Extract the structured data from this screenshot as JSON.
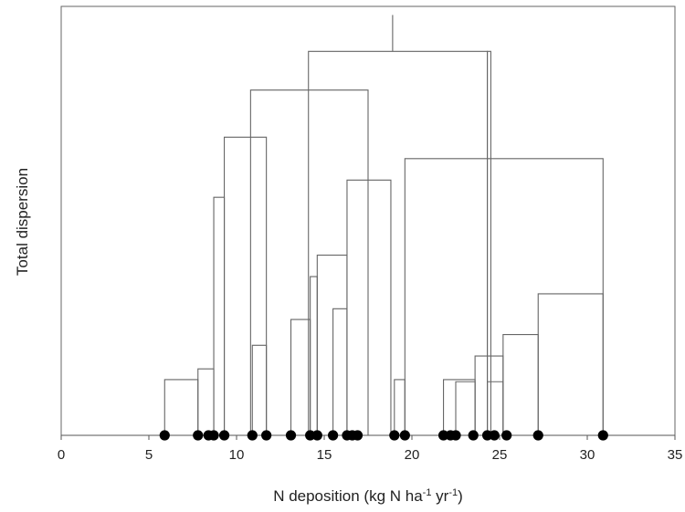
{
  "chart_data": {
    "type": "dendrogram",
    "xlabel": {
      "pre": "N deposition (kg N ha",
      "sup1": "-1",
      "mid": " yr",
      "sup2": "-1",
      "post": ")"
    },
    "ylabel": "Total dispersion",
    "xlim": [
      0,
      35
    ],
    "x_ticks": [
      0,
      5,
      10,
      15,
      20,
      25,
      30,
      35
    ],
    "y_ticks": [],
    "leaves": [
      5.9,
      7.8,
      8.4,
      8.7,
      9.3,
      10.9,
      11.7,
      13.1,
      14.2,
      14.6,
      15.5,
      16.3,
      16.6,
      16.9,
      19.0,
      19.6,
      21.8,
      22.2,
      22.5,
      23.5,
      24.3,
      24.7,
      25.4,
      27.2,
      30.9
    ],
    "merges": [
      [
        5.9,
        7.8,
        0.13
      ],
      [
        7.8,
        8.7,
        0.155
      ],
      [
        8.7,
        9.3,
        0.555
      ],
      [
        10.9,
        11.7,
        0.21
      ],
      [
        9.3,
        11.7,
        0.695
      ],
      [
        13.1,
        14.2,
        0.27
      ],
      [
        14.2,
        14.6,
        0.37
      ],
      [
        15.5,
        16.3,
        0.295
      ],
      [
        14.6,
        16.3,
        0.42
      ],
      [
        16.3,
        18.8,
        0.595
      ],
      [
        10.8,
        17.5,
        0.805
      ],
      [
        19.0,
        19.6,
        0.13
      ],
      [
        21.8,
        23.6,
        0.13
      ],
      [
        22.5,
        23.6,
        0.125
      ],
      [
        24.3,
        25.2,
        0.125
      ],
      [
        23.6,
        25.2,
        0.185
      ],
      [
        25.2,
        27.2,
        0.235
      ],
      [
        27.2,
        30.9,
        0.33
      ],
      [
        19.6,
        30.9,
        0.645
      ],
      [
        14.1,
        24.3,
        0.895
      ],
      [
        24.3,
        24.5,
        0.895
      ],
      [
        18.9,
        18.9,
        0.98
      ]
    ]
  }
}
